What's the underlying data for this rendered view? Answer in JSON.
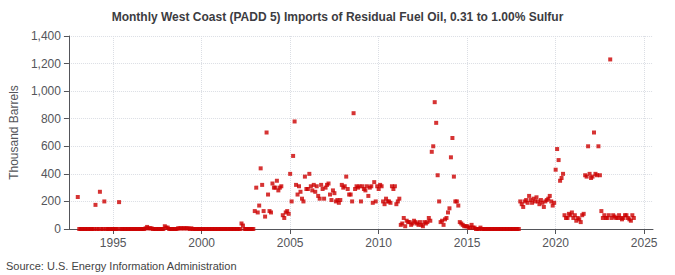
{
  "chart_data": {
    "type": "scatter",
    "title": "Monthly West Coast (PADD 5) Imports of Residual Fuel Oil, 0.31 to 1.00% Sulfur",
    "ylabel": "Thousand Barrels",
    "annotations": [
      "Source: U.S. Energy Information Administration"
    ],
    "color": "#cc0000",
    "marker": "square",
    "grid": true,
    "xlim": [
      1992.5,
      2025.5
    ],
    "xticks": [
      1995,
      2000,
      2005,
      2010,
      2015,
      2020,
      2025
    ],
    "ylim": [
      0,
      1400
    ],
    "yticks": [
      0,
      200,
      400,
      600,
      800,
      {
        "value": 1000,
        "label": "1,000"
      },
      {
        "value": 1200,
        "label": "1,200"
      },
      {
        "value": 1400,
        "label": "1,400"
      }
    ],
    "x": [
      1993.0,
      1993.083,
      1993.167,
      1993.25,
      1993.333,
      1993.417,
      1993.5,
      1993.583,
      1993.667,
      1993.75,
      1993.833,
      1993.917,
      1994.0,
      1994.083,
      1994.167,
      1994.25,
      1994.333,
      1994.417,
      1994.5,
      1994.583,
      1994.667,
      1994.75,
      1994.833,
      1994.917,
      1995.0,
      1995.083,
      1995.167,
      1995.25,
      1995.333,
      1995.417,
      1995.5,
      1995.583,
      1995.667,
      1995.75,
      1995.833,
      1995.917,
      1996.0,
      1996.083,
      1996.167,
      1996.25,
      1996.333,
      1996.417,
      1996.5,
      1996.583,
      1996.667,
      1996.75,
      1996.833,
      1996.917,
      1997.0,
      1997.083,
      1997.167,
      1997.25,
      1997.333,
      1997.417,
      1997.5,
      1997.583,
      1997.667,
      1997.75,
      1997.833,
      1997.917,
      1998.0,
      1998.083,
      1998.167,
      1998.25,
      1998.333,
      1998.417,
      1998.5,
      1998.583,
      1998.667,
      1998.75,
      1998.833,
      1998.917,
      1999.0,
      1999.083,
      1999.167,
      1999.25,
      1999.333,
      1999.417,
      1999.5,
      1999.583,
      1999.667,
      1999.75,
      1999.833,
      1999.917,
      2000.0,
      2000.083,
      2000.167,
      2000.25,
      2000.333,
      2000.417,
      2000.5,
      2000.583,
      2000.667,
      2000.75,
      2000.833,
      2000.917,
      2001.0,
      2001.083,
      2001.167,
      2001.25,
      2001.333,
      2001.417,
      2001.5,
      2001.583,
      2001.667,
      2001.75,
      2001.833,
      2001.917,
      2002.0,
      2002.083,
      2002.167,
      2002.25,
      2002.333,
      2002.417,
      2002.5,
      2002.583,
      2002.667,
      2002.75,
      2002.833,
      2002.917,
      2003.0,
      2003.083,
      2003.167,
      2003.25,
      2003.333,
      2003.417,
      2003.5,
      2003.583,
      2003.667,
      2003.75,
      2003.833,
      2003.917,
      2004.0,
      2004.083,
      2004.167,
      2004.25,
      2004.333,
      2004.417,
      2004.5,
      2004.583,
      2004.667,
      2004.75,
      2004.833,
      2004.917,
      2005.0,
      2005.083,
      2005.167,
      2005.25,
      2005.333,
      2005.417,
      2005.5,
      2005.583,
      2005.667,
      2005.75,
      2005.833,
      2005.917,
      2006.0,
      2006.083,
      2006.167,
      2006.25,
      2006.333,
      2006.417,
      2006.5,
      2006.583,
      2006.667,
      2006.75,
      2006.833,
      2006.917,
      2007.0,
      2007.083,
      2007.167,
      2007.25,
      2007.333,
      2007.417,
      2007.5,
      2007.583,
      2007.667,
      2007.75,
      2007.833,
      2007.917,
      2008.0,
      2008.083,
      2008.167,
      2008.25,
      2008.333,
      2008.417,
      2008.5,
      2008.583,
      2008.667,
      2008.75,
      2008.833,
      2008.917,
      2009.0,
      2009.083,
      2009.167,
      2009.25,
      2009.333,
      2009.417,
      2009.5,
      2009.583,
      2009.667,
      2009.75,
      2009.833,
      2009.917,
      2010.0,
      2010.083,
      2010.167,
      2010.25,
      2010.333,
      2010.417,
      2010.5,
      2010.583,
      2010.667,
      2010.75,
      2010.833,
      2010.917,
      2011.0,
      2011.083,
      2011.167,
      2011.25,
      2011.333,
      2011.417,
      2011.5,
      2011.583,
      2011.667,
      2011.75,
      2011.833,
      2011.917,
      2012.0,
      2012.083,
      2012.167,
      2012.25,
      2012.333,
      2012.417,
      2012.5,
      2012.583,
      2012.667,
      2012.75,
      2012.833,
      2012.917,
      2013.0,
      2013.083,
      2013.167,
      2013.25,
      2013.333,
      2013.417,
      2013.5,
      2013.583,
      2013.667,
      2013.75,
      2013.833,
      2013.917,
      2014.0,
      2014.083,
      2014.167,
      2014.25,
      2014.333,
      2014.417,
      2014.5,
      2014.583,
      2014.667,
      2014.75,
      2014.833,
      2014.917,
      2015.0,
      2015.083,
      2015.167,
      2015.25,
      2015.333,
      2015.417,
      2015.5,
      2015.583,
      2015.667,
      2015.75,
      2015.833,
      2015.917,
      2016.0,
      2016.083,
      2016.167,
      2016.25,
      2016.333,
      2016.417,
      2016.5,
      2016.583,
      2016.667,
      2016.75,
      2016.833,
      2016.917,
      2017.0,
      2017.083,
      2017.167,
      2017.25,
      2017.333,
      2017.417,
      2017.5,
      2017.583,
      2017.667,
      2017.75,
      2017.833,
      2017.917,
      2018.0,
      2018.083,
      2018.167,
      2018.25,
      2018.333,
      2018.417,
      2018.5,
      2018.583,
      2018.667,
      2018.75,
      2018.833,
      2018.917,
      2019.0,
      2019.083,
      2019.167,
      2019.25,
      2019.333,
      2019.417,
      2019.5,
      2019.583,
      2019.667,
      2019.75,
      2019.833,
      2019.917,
      2020.0,
      2020.083,
      2020.167,
      2020.25,
      2020.333,
      2020.417,
      2020.5,
      2020.583,
      2020.667,
      2020.75,
      2020.833,
      2020.917,
      2021.0,
      2021.083,
      2021.167,
      2021.25,
      2021.333,
      2021.417,
      2021.5,
      2021.583,
      2021.667,
      2021.75,
      2021.833,
      2021.917,
      2022.0,
      2022.083,
      2022.167,
      2022.25,
      2022.333,
      2022.417,
      2022.5,
      2022.583,
      2022.667,
      2022.75,
      2022.833,
      2022.917,
      2023.0,
      2023.083,
      2023.167,
      2023.25,
      2023.333,
      2023.417,
      2023.5,
      2023.583,
      2023.667,
      2023.75,
      2023.833,
      2023.917,
      2024.0,
      2024.083,
      2024.167,
      2024.25,
      2024.333,
      2024.417
    ],
    "values": [
      232,
      0,
      0,
      0,
      0,
      0,
      0,
      0,
      0,
      0,
      0,
      0,
      175,
      0,
      0,
      270,
      0,
      0,
      200,
      0,
      0,
      0,
      0,
      0,
      0,
      0,
      0,
      0,
      195,
      0,
      0,
      0,
      0,
      0,
      0,
      0,
      0,
      0,
      0,
      0,
      0,
      0,
      0,
      0,
      0,
      0,
      5,
      15,
      5,
      5,
      5,
      0,
      0,
      0,
      0,
      0,
      0,
      0,
      0,
      20,
      10,
      10,
      0,
      0,
      0,
      0,
      0,
      0,
      5,
      5,
      5,
      5,
      5,
      5,
      5,
      5,
      0,
      5,
      0,
      0,
      0,
      0,
      0,
      0,
      0,
      0,
      0,
      0,
      0,
      0,
      0,
      0,
      0,
      0,
      0,
      0,
      0,
      0,
      0,
      0,
      0,
      0,
      0,
      0,
      0,
      0,
      0,
      0,
      0,
      0,
      0,
      40,
      25,
      0,
      0,
      0,
      0,
      0,
      0,
      0,
      130,
      300,
      120,
      170,
      440,
      320,
      130,
      90,
      700,
      250,
      130,
      120,
      330,
      300,
      300,
      350,
      280,
      300,
      310,
      100,
      80,
      120,
      130,
      110,
      400,
      200,
      530,
      780,
      320,
      250,
      310,
      270,
      220,
      200,
      380,
      290,
      290,
      400,
      310,
      280,
      320,
      270,
      310,
      240,
      220,
      320,
      290,
      220,
      300,
      320,
      330,
      250,
      210,
      280,
      260,
      200,
      210,
      190,
      210,
      320,
      300,
      310,
      380,
      290,
      250,
      250,
      200,
      840,
      290,
      310,
      300,
      310,
      200,
      310,
      290,
      280,
      310,
      240,
      300,
      310,
      190,
      340,
      200,
      310,
      290,
      320,
      310,
      200,
      180,
      220,
      200,
      200,
      190,
      310,
      290,
      310,
      180,
      200,
      220,
      30,
      40,
      80,
      20,
      60,
      50,
      50,
      30,
      40,
      60,
      50,
      40,
      30,
      50,
      30,
      20,
      50,
      40,
      50,
      80,
      60,
      560,
      600,
      920,
      770,
      390,
      200,
      50,
      60,
      30,
      70,
      80,
      120,
      150,
      520,
      660,
      380,
      200,
      200,
      170,
      50,
      40,
      30,
      20,
      20,
      20,
      10,
      10,
      30,
      10,
      10,
      0,
      0,
      0,
      10,
      0,
      0,
      0,
      0,
      0,
      0,
      0,
      0,
      0,
      0,
      0,
      0,
      0,
      0,
      0,
      0,
      0,
      0,
      0,
      0,
      0,
      0,
      0,
      0,
      0,
      0,
      200,
      180,
      160,
      200,
      210,
      190,
      240,
      210,
      190,
      220,
      200,
      230,
      200,
      180,
      210,
      190,
      160,
      200,
      210,
      220,
      240,
      200,
      170,
      190,
      430,
      580,
      500,
      350,
      370,
      400,
      100,
      80,
      80,
      110,
      100,
      120,
      80,
      100,
      60,
      80,
      70,
      50,
      100,
      110,
      390,
      380,
      600,
      400,
      370,
      380,
      700,
      400,
      390,
      600,
      390,
      130,
      80,
      100,
      80,
      80,
      100,
      1230,
      80,
      100,
      90,
      80,
      80,
      100,
      80,
      70,
      80,
      100,
      100,
      80,
      70,
      60,
      100,
      80
    ]
  }
}
